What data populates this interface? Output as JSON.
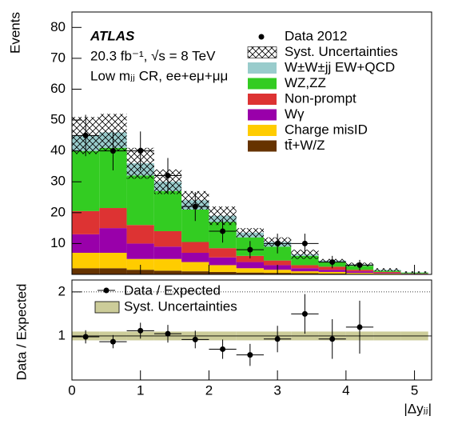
{
  "chart_data": [
    {
      "type": "stacked_histogram",
      "ylabel": "Events",
      "annotations": [
        "ATLAS",
        "20.3 fb⁻¹, √s = 8 TeV",
        "Low mⱼⱼ CR, ee+eμ+μμ"
      ],
      "bins": [
        0,
        0.4,
        0.8,
        1.2,
        1.6,
        2.0,
        2.4,
        2.8,
        3.2,
        3.6,
        4.0,
        4.4,
        4.8,
        5.2
      ],
      "xlim": [
        0,
        5.25
      ],
      "ylim": [
        0,
        85
      ],
      "yticks": [
        10,
        20,
        30,
        40,
        50,
        60,
        70,
        80
      ],
      "data": {
        "name": "Data 2012",
        "color": "#000000",
        "x": [
          0.2,
          0.6,
          1.0,
          1.4,
          1.8,
          2.2,
          2.6,
          3.0,
          3.4,
          3.8,
          4.2
        ],
        "values": [
          45,
          40,
          40,
          32,
          22,
          14,
          8,
          10,
          10,
          4,
          3
        ],
        "errors": [
          6.7,
          6.3,
          6.3,
          5.7,
          4.7,
          3.7,
          2.8,
          3.2,
          3.2,
          2,
          1.7
        ]
      },
      "syst": {
        "name": "Syst. Uncertainties",
        "errors": [
          6,
          6,
          5,
          4,
          3,
          3,
          1.5,
          1.5,
          1.5,
          0.5,
          0.6,
          0.5,
          0.3
        ]
      },
      "series": [
        {
          "name": "W±W±jj EW+QCD",
          "color": "#99cccc",
          "values": [
            5,
            5,
            4,
            3,
            3,
            2,
            1.5,
            1.5,
            0.5,
            0.5,
            0.4,
            0.3,
            0.1
          ]
        },
        {
          "name": "WZ,ZZ",
          "color": "#33cc22",
          "values": [
            19.5,
            19.5,
            16,
            13,
            10.5,
            8.5,
            6,
            4.5,
            3,
            1.5,
            1.3,
            0.4,
            0.3
          ]
        },
        {
          "name": "Non-prompt",
          "color": "#dd3333",
          "values": [
            7.5,
            6.5,
            6,
            5,
            3.5,
            3,
            2,
            1.5,
            1,
            1,
            0.5,
            0.3,
            0.1
          ]
        },
        {
          "name": "Wγ",
          "color": "#9900aa",
          "values": [
            6,
            8,
            5,
            4,
            3,
            2.5,
            2,
            1.5,
            1,
            0.7,
            0.5,
            0.2,
            0.1
          ]
        },
        {
          "name": "Charge misID",
          "color": "#ffcc00",
          "values": [
            5,
            5,
            3.5,
            3.8,
            3,
            2.2,
            1.4,
            1,
            0.6,
            0.5,
            0.3,
            0.2,
            0.05
          ]
        },
        {
          "name": "tt̄+W/Z",
          "color": "#663300",
          "values": [
            2,
            2,
            1.5,
            1.2,
            1,
            0.8,
            0.6,
            0.5,
            0.4,
            0.3,
            0.2,
            0.1,
            0.05
          ]
        }
      ]
    },
    {
      "type": "ratio",
      "ylabel": "Data / Expected",
      "xlabel": "|Δyⱼⱼ|",
      "xlim": [
        0,
        5.25
      ],
      "xticks": [
        0,
        1,
        2,
        3,
        4,
        5
      ],
      "ylim": [
        0,
        2.27
      ],
      "yticks": [
        1,
        2
      ],
      "data": {
        "name": "Data / Expected",
        "color": "#000000",
        "x": [
          0.2,
          0.6,
          1.0,
          1.4,
          1.8,
          2.2,
          2.6,
          3.0,
          3.4,
          3.8,
          4.2
        ],
        "values": [
          0.98,
          0.87,
          1.12,
          1.05,
          0.92,
          0.7,
          0.57,
          0.93,
          1.5,
          0.93,
          1.2
        ],
        "errors": [
          0.15,
          0.15,
          0.18,
          0.2,
          0.2,
          0.22,
          0.25,
          0.3,
          0.45,
          0.45,
          0.6
        ]
      },
      "syst": {
        "name": "Syst. Uncertainties",
        "color": "#cccc99",
        "errors": [
          0.1,
          0.1,
          0.1,
          0.1,
          0.1,
          0.1,
          0.1,
          0.1,
          0.1,
          0.1,
          0.1,
          0.1,
          0.1
        ]
      }
    }
  ]
}
